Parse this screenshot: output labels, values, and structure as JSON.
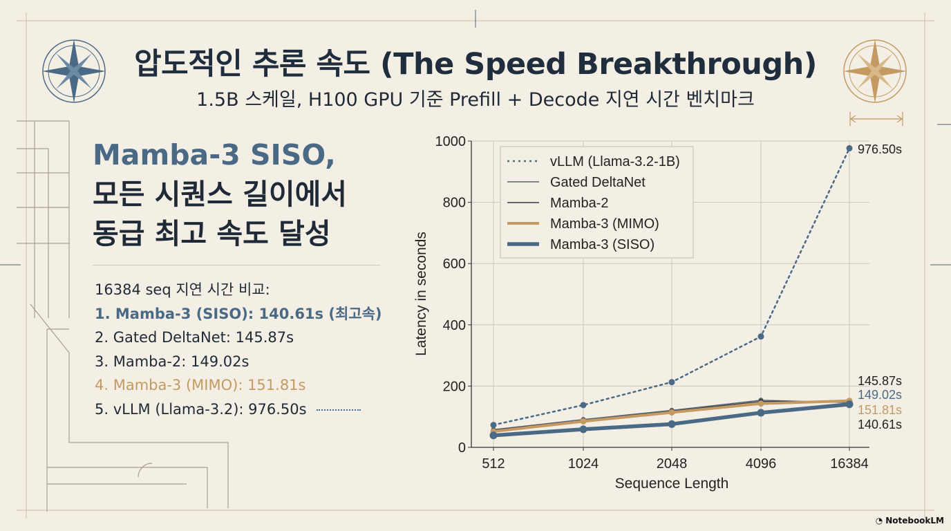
{
  "header": {
    "title": "압도적인 추론 속도 (The Speed Breakthrough)",
    "subtitle": "1.5B 스케일, H100 GPU 기준 Prefill + Decode 지연 시간 벤치마크"
  },
  "left_panel": {
    "headline_line1": "Mamba-3 SISO,",
    "headline_line2": "모든 시퀀스 길이에서",
    "headline_line3": "동급 최고 속도 달성",
    "comparison_title": "16384 seq 지연 시간 비교:",
    "ranking": [
      "1. Mamba-3 (SISO): 140.61s (최고속)",
      "2. Gated DeltaNet: 145.87s",
      "3. Mamba-2: 149.02s",
      "4. Mamba-3 (MIMO): 151.81s",
      "5. vLLM (Llama-3.2): 976.50s"
    ]
  },
  "colors": {
    "accent_blue": "#4a6985",
    "accent_gold": "#c49a62",
    "dark_line": "#4d5866",
    "background": "#f3efe4"
  },
  "brand": {
    "label": "NotebookLM"
  },
  "chart_data": {
    "type": "line",
    "xlabel": "Sequence Length",
    "ylabel": "Latency in seconds",
    "categories": [
      "512",
      "1024",
      "2048",
      "4096",
      "16384"
    ],
    "ylim": [
      0,
      1000
    ],
    "yticks": [
      "0",
      "200",
      "400",
      "600",
      "800",
      "1000"
    ],
    "grid": true,
    "legend_position": "top-left",
    "series": [
      {
        "name": "vLLM (Llama-3.2-1B)",
        "values": [
          73,
          138,
          213,
          362,
          976.5
        ],
        "color": "#4a6985",
        "style": "dotted",
        "markers": true
      },
      {
        "name": "Gated DeltaNet",
        "values": [
          58,
          91,
          121,
          154,
          145.87
        ],
        "color": "#56616e",
        "style": "thin"
      },
      {
        "name": "Mamba-2",
        "values": [
          56,
          88,
          118,
          150,
          149.02
        ],
        "color": "#333c47",
        "style": "thin"
      },
      {
        "name": "Mamba-3 (MIMO)",
        "values": [
          52,
          85,
          114,
          143,
          151.81
        ],
        "color": "#c49a62",
        "style": "medium"
      },
      {
        "name": "Mamba-3 (SISO)",
        "values": [
          39,
          59,
          76,
          113,
          140.61
        ],
        "color": "#4a6985",
        "style": "thick"
      }
    ],
    "annotations": [
      {
        "text": "976.50s",
        "color": "#222222"
      },
      {
        "text": "145.87s",
        "color": "#222222"
      },
      {
        "text": "149.02s",
        "color": "#4a6985"
      },
      {
        "text": "151.81s",
        "color": "#c49a62"
      },
      {
        "text": "140.61s",
        "color": "#222222"
      }
    ]
  }
}
